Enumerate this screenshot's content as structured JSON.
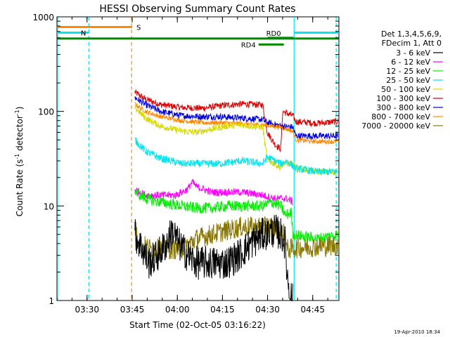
{
  "chart_data": {
    "type": "line",
    "title": "HESSI Observing Summary Count Rates",
    "xlabel": "Start Time (02-Oct-05 03:16:22)",
    "ylabel_main": "Count Rate (s",
    "ylabel_sup": "-1",
    "ylabel_end": " detector",
    "ylabel_close": ")",
    "yscale": "log",
    "ylim": [
      1,
      1000
    ],
    "xlim_minutes": [
      3.6,
      97.3
    ],
    "x_unit": "minutes after start time",
    "x_ticks": [
      {
        "label": "03:30",
        "value": 13.6
      },
      {
        "label": "03:45",
        "value": 28.6
      },
      {
        "label": "04:00",
        "value": 43.6
      },
      {
        "label": "04:15",
        "value": 58.6
      },
      {
        "label": "04:30",
        "value": 73.6
      },
      {
        "label": "04:45",
        "value": 88.6
      }
    ],
    "y_ticks": [
      {
        "label": "1",
        "value": 1
      },
      {
        "label": "10",
        "value": 10
      },
      {
        "label": "100",
        "value": 100
      },
      {
        "label": "1000",
        "value": 1000
      }
    ],
    "legend": {
      "position": "right",
      "header": [
        "Det 1,3,4,5,6,9,",
        "FDecim 1, Att 0"
      ],
      "entries": [
        {
          "label": "3 - 6 keV",
          "color": "#000000"
        },
        {
          "label": "6 - 12 keV",
          "color": "#ff00ff"
        },
        {
          "label": "12 - 25 keV",
          "color": "#00ee00"
        },
        {
          "label": "25 - 50 keV",
          "color": "#00e5ee"
        },
        {
          "label": "50 - 100 keV",
          "color": "#d8d800"
        },
        {
          "label": "100 - 300 keV",
          "color": "#dd0000"
        },
        {
          "label": "300 - 800 keV",
          "color": "#0000dd"
        },
        {
          "label": "800 - 7000 keV",
          "color": "#ff8800"
        },
        {
          "label": "7000 - 20000 keV",
          "color": "#887700"
        }
      ]
    },
    "data_start": 29.5,
    "data_end": 97.0,
    "series": [
      {
        "color": "#dd0000",
        "noise": 0.035,
        "points": [
          [
            29.5,
            160
          ],
          [
            33,
            135
          ],
          [
            38,
            118
          ],
          [
            45,
            110
          ],
          [
            52,
            108
          ],
          [
            58,
            115
          ],
          [
            65,
            120
          ],
          [
            72,
            117
          ],
          [
            73.5,
            60
          ],
          [
            76,
            45
          ],
          [
            78,
            40
          ],
          [
            78.6,
            100
          ],
          [
            82,
            90
          ],
          [
            83,
            78
          ],
          [
            90,
            75
          ],
          [
            97,
            78
          ]
        ]
      },
      {
        "color": "#0000dd",
        "noise": 0.035,
        "points": [
          [
            29.5,
            140
          ],
          [
            33,
            118
          ],
          [
            38,
            100
          ],
          [
            45,
            90
          ],
          [
            52,
            88
          ],
          [
            58,
            88
          ],
          [
            65,
            85
          ],
          [
            72,
            82
          ],
          [
            73.5,
            76
          ],
          [
            78,
            70
          ],
          [
            82,
            68
          ],
          [
            83,
            55
          ],
          [
            90,
            55
          ],
          [
            97,
            55
          ]
        ]
      },
      {
        "color": "#ff8800",
        "noise": 0.025,
        "points": [
          [
            29.5,
            120
          ],
          [
            33,
            100
          ],
          [
            38,
            88
          ],
          [
            45,
            80
          ],
          [
            52,
            76
          ],
          [
            58,
            76
          ],
          [
            65,
            74
          ],
          [
            72,
            72
          ],
          [
            78,
            68
          ],
          [
            82,
            62
          ],
          [
            83,
            50
          ],
          [
            90,
            48
          ],
          [
            97,
            48
          ]
        ]
      },
      {
        "color": "#d8d800",
        "noise": 0.035,
        "points": [
          [
            29.5,
            110
          ],
          [
            33,
            85
          ],
          [
            38,
            70
          ],
          [
            45,
            62
          ],
          [
            50,
            60
          ],
          [
            55,
            65
          ],
          [
            60,
            70
          ],
          [
            65,
            72
          ],
          [
            72,
            68
          ],
          [
            73.5,
            30
          ],
          [
            76,
            28
          ],
          [
            78,
            25
          ],
          [
            79,
            28
          ],
          [
            82,
            28
          ],
          [
            83,
            25
          ],
          [
            90,
            23
          ],
          [
            97,
            23
          ]
        ]
      },
      {
        "color": "#00e5ee",
        "noise": 0.04,
        "points": [
          [
            29.5,
            50
          ],
          [
            33,
            38
          ],
          [
            38,
            32
          ],
          [
            45,
            28
          ],
          [
            52,
            28
          ],
          [
            58,
            28
          ],
          [
            65,
            30
          ],
          [
            72,
            28
          ],
          [
            73.5,
            33
          ],
          [
            78,
            28
          ],
          [
            80,
            30
          ],
          [
            83,
            25
          ],
          [
            90,
            23
          ],
          [
            97,
            23
          ]
        ]
      },
      {
        "color": "#ff00ff",
        "noise": 0.04,
        "points": [
          [
            29.5,
            15
          ],
          [
            33,
            13
          ],
          [
            38,
            13
          ],
          [
            43,
            13
          ],
          [
            47,
            15
          ],
          [
            48.5,
            18
          ],
          [
            50,
            16
          ],
          [
            55,
            14
          ],
          [
            60,
            14
          ],
          [
            65,
            14
          ],
          [
            72,
            13
          ],
          [
            76,
            12
          ],
          [
            80,
            12
          ],
          [
            82,
            11
          ]
        ]
      },
      {
        "color": "#00ee00",
        "noise": 0.06,
        "points": [
          [
            29.5,
            14
          ],
          [
            33,
            12
          ],
          [
            38,
            11
          ],
          [
            45,
            10
          ],
          [
            50,
            9.5
          ],
          [
            55,
            9.5
          ],
          [
            60,
            10
          ],
          [
            65,
            10
          ],
          [
            72,
            10
          ],
          [
            75,
            11
          ],
          [
            78,
            10
          ],
          [
            79.5,
            8
          ],
          [
            81.5,
            8.5
          ],
          [
            82,
            5
          ],
          [
            90,
            4.5
          ],
          [
            97,
            5
          ]
        ]
      },
      {
        "color": "#887700",
        "noise": 0.11,
        "points": [
          [
            29.5,
            6
          ],
          [
            31,
            4
          ],
          [
            35,
            3.5
          ],
          [
            45,
            3.5
          ],
          [
            50,
            4.5
          ],
          [
            55,
            5
          ],
          [
            60,
            5.5
          ],
          [
            65,
            6
          ],
          [
            70,
            6
          ],
          [
            75,
            6
          ],
          [
            79.5,
            5
          ],
          [
            80,
            3.5
          ],
          [
            88,
            3.7
          ],
          [
            97,
            3.8
          ]
        ]
      },
      {
        "color": "#000000",
        "noise": 0.18,
        "points": [
          [
            29.5,
            5
          ],
          [
            32,
            3.5
          ],
          [
            34,
            2.5
          ],
          [
            37,
            3
          ],
          [
            40,
            4
          ],
          [
            42,
            5.5
          ],
          [
            44,
            4
          ],
          [
            47,
            3
          ],
          [
            50,
            2.5
          ],
          [
            55,
            2.5
          ],
          [
            60,
            2.5
          ],
          [
            64,
            3
          ],
          [
            68,
            4
          ],
          [
            72,
            5
          ],
          [
            76,
            5.5
          ],
          [
            78,
            5
          ],
          [
            79.5,
            4
          ],
          [
            80,
            2
          ],
          [
            81,
            1.2
          ],
          [
            82,
            1
          ]
        ]
      }
    ],
    "status_bars": [
      {
        "label": "S",
        "color": "#ff8800",
        "y_value": 780,
        "x_start": 3.6,
        "x_end": 28.6
      },
      {
        "label": "N",
        "color": "#00e5ee",
        "y_value": 680,
        "x_start": 3.6,
        "x_end": 14.2,
        "x2_start": 82.5,
        "x2_end": 97.3
      },
      {
        "label": "",
        "color": "#008800",
        "y_value": 590,
        "x_start": 3.6,
        "x_end": 97.3
      },
      {
        "label": "RD0",
        "color": "#008800",
        "y_value": 600,
        "x_start": 73.6,
        "x_end": 82.2
      },
      {
        "label": "RD4",
        "color": "#008800",
        "y_value": 510,
        "x_start": 70.6,
        "x_end": 79.0
      }
    ],
    "vertical_markers": [
      {
        "x": 14.2,
        "color": "#00e5ee",
        "style": "dashed"
      },
      {
        "x": 28.4,
        "color": "#ff8800",
        "style": "dashed"
      },
      {
        "x": 96.4,
        "color": "#00e5ee",
        "style": "dashed"
      },
      {
        "x": 3.8,
        "color": "#00e5ee",
        "style": "solid"
      },
      {
        "x": 82.4,
        "color": "#00e5ee",
        "style": "solid"
      }
    ],
    "footer": "19-Apr-2010 18:34"
  }
}
